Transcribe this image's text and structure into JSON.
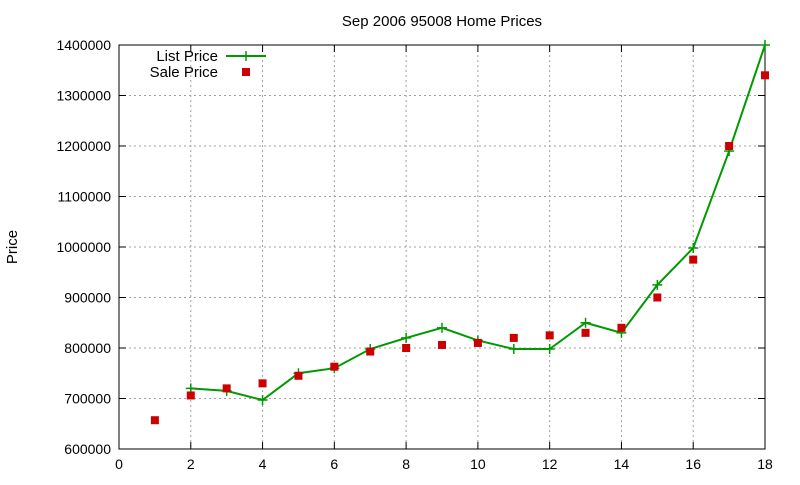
{
  "chart_data": {
    "type": "line",
    "title": "Sep 2006 95008 Home Prices",
    "xlabel": "",
    "ylabel": "Price",
    "xlim": [
      0,
      18
    ],
    "ylim": [
      600000,
      1400000
    ],
    "x_ticks": [
      0,
      2,
      4,
      6,
      8,
      10,
      12,
      14,
      16,
      18
    ],
    "y_ticks": [
      600000,
      700000,
      800000,
      900000,
      1000000,
      1100000,
      1200000,
      1300000,
      1400000
    ],
    "grid": true,
    "legend_position": "top-left",
    "series": [
      {
        "name": "List Price",
        "style": "line-with-plus-markers",
        "color": "#009900",
        "x": [
          2,
          3,
          4,
          5,
          6,
          7,
          8,
          9,
          10,
          11,
          12,
          13,
          14,
          15,
          16,
          17,
          18
        ],
        "y": [
          720000,
          715000,
          697000,
          750000,
          760000,
          798000,
          820000,
          840000,
          815000,
          798000,
          798000,
          850000,
          830000,
          925000,
          998000,
          1190000,
          1400000
        ]
      },
      {
        "name": "Sale Price",
        "style": "square-markers",
        "color": "#cc0000",
        "x": [
          1,
          2,
          3,
          4,
          5,
          6,
          7,
          8,
          9,
          10,
          11,
          12,
          13,
          14,
          15,
          16,
          17,
          18
        ],
        "y": [
          657000,
          706000,
          720000,
          730000,
          745000,
          763000,
          793000,
          800000,
          806000,
          810000,
          820000,
          825000,
          830000,
          840000,
          900000,
          975000,
          1200000,
          1340000
        ]
      }
    ]
  }
}
